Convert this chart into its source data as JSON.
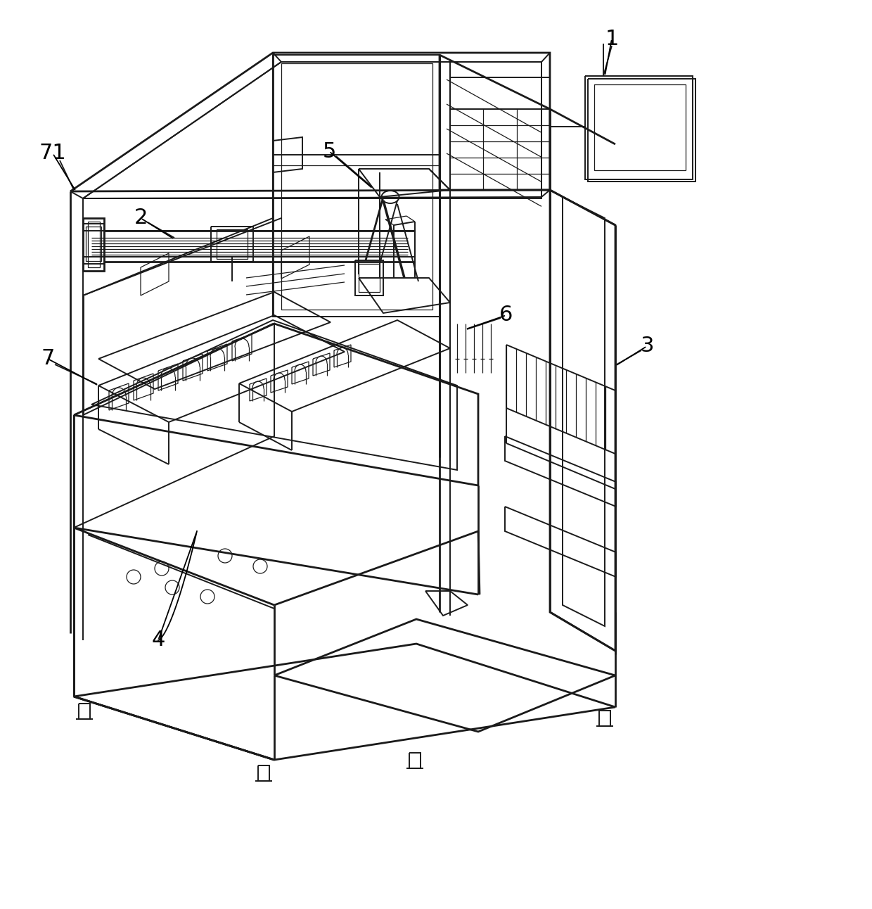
{
  "background_color": "#ffffff",
  "line_color": "#1a1a1a",
  "label_color": "#000000",
  "label_fontsize": 22,
  "fig_width": 12.4,
  "fig_height": 12.92,
  "dpi": 100
}
